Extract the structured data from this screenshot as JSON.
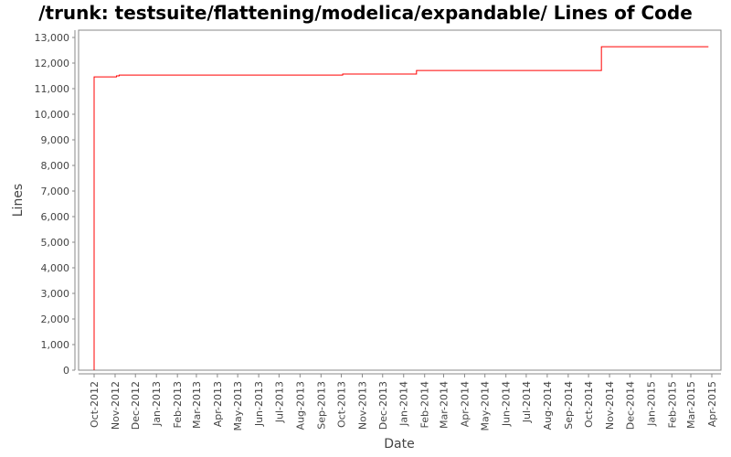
{
  "chart_data": {
    "type": "line",
    "step": true,
    "title": "/trunk: testsuite/flattening/modelica/expandable/ Lines of Code",
    "xlabel": "Date",
    "ylabel": "Lines",
    "ylim": [
      0,
      13000
    ],
    "xlim": [
      "2012-09-10",
      "2015-04-15"
    ],
    "grid": false,
    "line_color": "#ff0000",
    "yticks": [
      0,
      1000,
      2000,
      3000,
      4000,
      5000,
      6000,
      7000,
      8000,
      9000,
      10000,
      11000,
      12000,
      13000
    ],
    "ytick_labels": [
      "0",
      "1,000",
      "2,000",
      "3,000",
      "4,000",
      "5,000",
      "6,000",
      "7,000",
      "8,000",
      "9,000",
      "10,000",
      "11,000",
      "12,000",
      "13,000"
    ],
    "xtick_labels": [
      "Oct-2012",
      "Nov-2012",
      "Dec-2012",
      "Jan-2013",
      "Feb-2013",
      "Mar-2013",
      "Apr-2013",
      "May-2013",
      "Jun-2013",
      "Jul-2013",
      "Aug-2013",
      "Sep-2013",
      "Oct-2013",
      "Nov-2013",
      "Dec-2013",
      "Jan-2014",
      "Feb-2014",
      "Mar-2014",
      "Apr-2014",
      "May-2014",
      "Jun-2014",
      "Jul-2014",
      "Aug-2014",
      "Sep-2014",
      "Oct-2014",
      "Nov-2014",
      "Dec-2014",
      "Jan-2015",
      "Feb-2015",
      "Mar-2015",
      "Apr-2015"
    ],
    "series": [
      {
        "x": [
          "2012-10-01",
          "2012-10-01",
          "2012-11-03",
          "2012-11-07",
          "2013-10-03",
          "2014-01-20",
          "2014-10-20",
          "2015-03-27"
        ],
        "y": [
          0,
          11460,
          11500,
          11530,
          11570,
          11710,
          12640,
          12640
        ]
      }
    ]
  }
}
